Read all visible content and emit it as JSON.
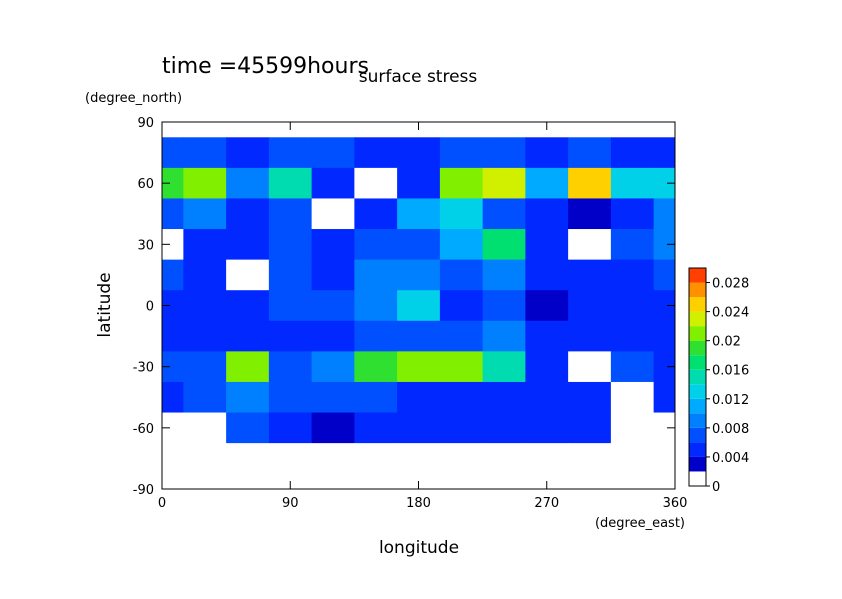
{
  "chart_data": {
    "type": "contour",
    "title": "surface stress",
    "subtitle": "time =45599hours",
    "x_label": "longitude",
    "x_units": "(degree_east)",
    "y_label": "latitude",
    "y_units": "(degree_north)",
    "x": [
      0,
      30,
      60,
      90,
      120,
      150,
      180,
      210,
      240,
      270,
      300,
      330,
      360
    ],
    "y": [
      90,
      75,
      60,
      45,
      30,
      15,
      0,
      -15,
      -30,
      -45,
      -60,
      -75,
      -90
    ],
    "z": [
      [
        0,
        0,
        0,
        0,
        0,
        0,
        0,
        0,
        0,
        0,
        0,
        0,
        0
      ],
      [
        0.006,
        0.006,
        0.004,
        0.006,
        0.006,
        0.004,
        0.004,
        0.006,
        0.006,
        0.004,
        0.006,
        0.004,
        0.004
      ],
      [
        0.018,
        0.02,
        0.008,
        0.014,
        0.004,
        0,
        0.004,
        0.02,
        0.022,
        0.01,
        0.024,
        0.012,
        0.012
      ],
      [
        0.006,
        0.008,
        0.004,
        0.006,
        0,
        0.004,
        0.01,
        0.012,
        0.006,
        0.004,
        0.002,
        0.004,
        0.008
      ],
      [
        0,
        0.004,
        0.004,
        0.006,
        0.004,
        0.006,
        0.006,
        0.01,
        0.016,
        0.004,
        0,
        0.006,
        0.008
      ],
      [
        0.006,
        0.004,
        0,
        0.006,
        0.004,
        0.008,
        0.008,
        0.006,
        0.008,
        0.004,
        0.004,
        0.004,
        0.006
      ],
      [
        0.004,
        0.004,
        0.004,
        0.006,
        0.006,
        0.008,
        0.012,
        0.004,
        0.006,
        0.002,
        0.004,
        0.004,
        0.004
      ],
      [
        0.004,
        0.004,
        0.004,
        0.004,
        0.004,
        0.006,
        0.006,
        0.006,
        0.008,
        0.004,
        0.004,
        0.004,
        0.004
      ],
      [
        0.006,
        0.006,
        0.02,
        0.006,
        0.008,
        0.018,
        0.02,
        0.02,
        0.014,
        0.004,
        0,
        0.006,
        0.004
      ],
      [
        0.004,
        0.006,
        0.008,
        0.006,
        0.006,
        0.006,
        0.004,
        0.004,
        0.004,
        0.004,
        0.004,
        0,
        0.004
      ],
      [
        0,
        0,
        0.006,
        0.004,
        0.002,
        0.004,
        0.004,
        0.004,
        0.004,
        0.004,
        0.004,
        0,
        0
      ],
      [
        0,
        0,
        0,
        0,
        0,
        0,
        0,
        0,
        0,
        0,
        0,
        0,
        0
      ],
      [
        0,
        0,
        0,
        0,
        0,
        0,
        0,
        0,
        0,
        0,
        0,
        0,
        0
      ]
    ],
    "xlim": [
      0,
      360
    ],
    "xticks": [
      0,
      90,
      180,
      270,
      360
    ],
    "ylim": [
      -90,
      90
    ],
    "yticks": [
      -90,
      -60,
      -30,
      0,
      30,
      60,
      90
    ],
    "levels": [
      0,
      0.002,
      0.004,
      0.006,
      0.008,
      0.01,
      0.012,
      0.014,
      0.016,
      0.018,
      0.02,
      0.022,
      0.024,
      0.026,
      0.028,
      0.03
    ],
    "colors": [
      "#ffffff",
      "#0000c8",
      "#0028ff",
      "#0050ff",
      "#0080ff",
      "#00aaff",
      "#00d0e8",
      "#00dcb0",
      "#00e070",
      "#30e030",
      "#80f000",
      "#d0f000",
      "#ffd000",
      "#ff9000",
      "#ff4000"
    ],
    "colorbar_ticks": [
      0,
      0.004,
      0.008,
      0.012,
      0.016,
      0.02,
      0.024,
      0.028
    ]
  }
}
